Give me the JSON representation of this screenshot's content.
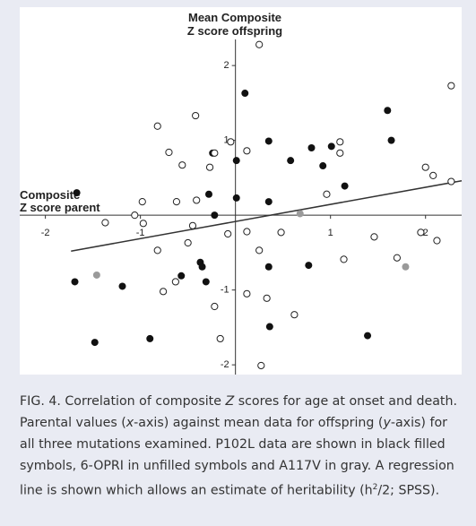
{
  "chart_data": {
    "type": "scatter",
    "y_label": [
      "Mean Composite",
      "Z score offspring"
    ],
    "x_label": [
      "Composite",
      "Z score parent"
    ],
    "xlim": [
      -2.27,
      2.38
    ],
    "ylim": [
      -2.13,
      2.78
    ],
    "xticks": [
      -2,
      -1,
      1,
      2
    ],
    "yticks": [
      2,
      1,
      -1,
      -2
    ],
    "series": [
      {
        "color": "#111111",
        "marker": "filled",
        "x": [
          -1.67,
          0.1,
          -0.24,
          -0.28,
          0.01,
          0.01,
          -0.22,
          0.35,
          0.35,
          0.58,
          0.8,
          0.92,
          1.01,
          1.15,
          1.6,
          1.64,
          -1.69,
          -1.19,
          -0.57,
          -0.37,
          -0.35,
          -0.31,
          0.35,
          0.77,
          -1.48,
          -0.9,
          0.36,
          1.39
        ],
        "values": [
          0.3,
          1.63,
          0.83,
          0.28,
          0.73,
          0.23,
          0.0,
          0.99,
          0.18,
          0.73,
          0.9,
          0.66,
          0.92,
          0.39,
          1.4,
          1.0,
          -0.89,
          -0.95,
          -0.81,
          -0.63,
          -0.69,
          -0.89,
          -0.69,
          -0.67,
          -1.7,
          -1.65,
          -1.49,
          -1.61
        ]
      },
      {
        "color": "#222222",
        "marker": "open",
        "x": [
          0.25,
          2.27,
          -0.42,
          -0.82,
          -0.7,
          -0.56,
          -0.27,
          -0.22,
          -0.05,
          0.12,
          1.1,
          1.1,
          2.0,
          2.08,
          2.27,
          0.96,
          -0.98,
          -1.06,
          -0.97,
          -1.37,
          -0.62,
          -0.41,
          -0.45,
          -0.08,
          0.12,
          0.48,
          -0.5,
          -0.82,
          0.25,
          1.14,
          1.46,
          1.7,
          2.12,
          1.95,
          -0.63,
          -0.76,
          0.12,
          0.33,
          -0.22,
          0.62,
          -0.16,
          0.27
        ],
        "values": [
          2.28,
          1.73,
          1.33,
          1.19,
          0.84,
          0.67,
          0.64,
          0.83,
          0.98,
          0.86,
          0.98,
          0.83,
          0.64,
          0.53,
          0.45,
          0.28,
          0.18,
          0.0,
          -0.11,
          -0.1,
          0.18,
          0.2,
          -0.14,
          -0.25,
          -0.22,
          -0.23,
          -0.37,
          -0.47,
          -0.47,
          -0.59,
          -0.29,
          -0.57,
          -0.34,
          -0.23,
          -0.89,
          -1.02,
          -1.05,
          -1.11,
          -1.22,
          -1.33,
          -1.65,
          -2.01
        ]
      },
      {
        "color": "#9a9a9a",
        "marker": "filled",
        "x": [
          -1.46,
          0.68,
          1.79
        ],
        "values": [
          -0.8,
          0.02,
          -0.69
        ]
      }
    ],
    "regression": {
      "x": [
        -1.73,
        2.38
      ],
      "values": [
        -0.48,
        0.46
      ],
      "color": "#333333"
    }
  },
  "caption": [
    "FIG. 4. Correlation of composite ",
    "Z",
    " scores for age at onset and death. Parental values (",
    "x",
    "-axis) against mean data for offspring (",
    "y",
    "-axis) for all three mutations examined. P102L data are shown in black filled symbols, 6-OPRI in unfilled symbols and A117V in gray. A regression line is shown which allows an estimate of heritability (h",
    "2",
    "/2; SPSS)."
  ]
}
